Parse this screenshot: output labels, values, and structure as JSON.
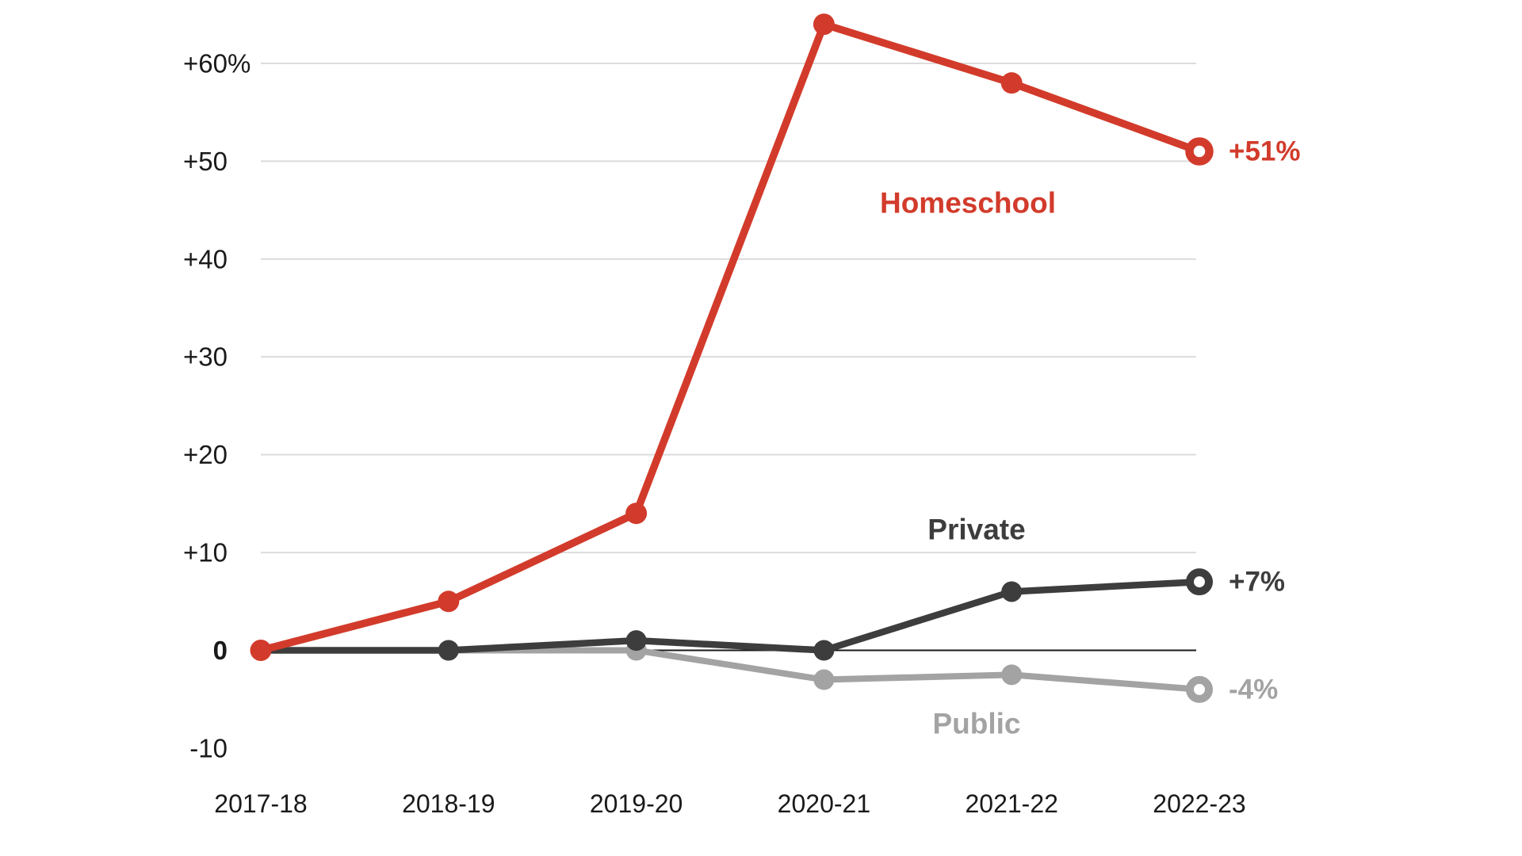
{
  "chart_data": {
    "type": "line",
    "title": "",
    "categories": [
      "2017-18",
      "2018-19",
      "2019-20",
      "2020-21",
      "2021-22",
      "2022-23"
    ],
    "y_axis": {
      "ticks": [
        {
          "label": "+60",
          "suffix": "%",
          "value": 60,
          "bold": false
        },
        {
          "label": "+50",
          "suffix": "",
          "value": 50,
          "bold": false
        },
        {
          "label": "+40",
          "suffix": "",
          "value": 40,
          "bold": false
        },
        {
          "label": "+30",
          "suffix": "",
          "value": 30,
          "bold": false
        },
        {
          "label": "+20",
          "suffix": "",
          "value": 20,
          "bold": false
        },
        {
          "label": "+10",
          "suffix": "",
          "value": 10,
          "bold": false
        },
        {
          "label": "0",
          "suffix": "",
          "value": 0,
          "bold": true
        },
        {
          "label": "-10",
          "suffix": "",
          "value": -10,
          "bold": false
        }
      ],
      "gridline_values": [
        60,
        50,
        40,
        30,
        20,
        10
      ],
      "zero_line_value": 0,
      "ylim": [
        -10,
        66
      ],
      "grid": "horizontal"
    },
    "series": [
      {
        "name": "Homeschool",
        "color": "#d23b2b",
        "values": [
          0,
          5,
          14,
          64,
          58,
          51
        ],
        "end_label": "+51%"
      },
      {
        "name": "Private",
        "color": "#3d3d3d",
        "values": [
          0,
          0,
          1,
          0,
          6,
          7
        ],
        "end_label": "+7%"
      },
      {
        "name": "Public",
        "color": "#a3a3a3",
        "values": [
          0,
          0,
          0,
          -3,
          -2.5,
          -4
        ],
        "end_label": "-4%"
      }
    ],
    "colors": {
      "gridline": "#dcdcdc",
      "zero_axis": "#1a1a1a",
      "tick_label": "#1a1a1a",
      "background": "#ffffff"
    },
    "legend_position": "inline-series-labels"
  }
}
